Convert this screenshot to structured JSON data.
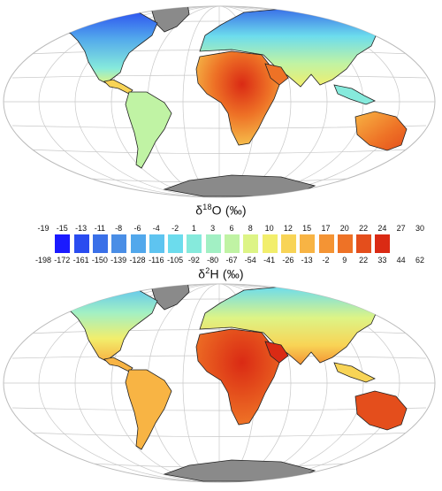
{
  "maps": [
    {
      "id": "d18O",
      "title_symbol": "δ",
      "title_superscript": "18",
      "title_rest": "O (‰)"
    },
    {
      "id": "d2H",
      "title_symbol": "δ",
      "title_superscript": "2",
      "title_rest": "H (‰)"
    }
  ],
  "legend": {
    "colors": [
      "#1a1aff",
      "#2a4cf0",
      "#3a70e8",
      "#4a8ee6",
      "#52a8ec",
      "#5ec4f0",
      "#6cdced",
      "#86eadc",
      "#a2f0c4",
      "#c0f3a4",
      "#ddf486",
      "#f2ee6c",
      "#f8d456",
      "#f8b444",
      "#f49434",
      "#ee7226",
      "#e44e1c",
      "#da2a14"
    ],
    "d18O_ticks": [
      "-19",
      "-15",
      "-13",
      "-11",
      "-8",
      "-6",
      "-4",
      "-2",
      "1",
      "3",
      "6",
      "8",
      "10",
      "12",
      "15",
      "17",
      "20",
      "22",
      "24",
      "27",
      "30"
    ],
    "d2H_ticks": [
      "-198",
      "-172",
      "-161",
      "-150",
      "-139",
      "-128",
      "-116",
      "-105",
      "-92",
      "-80",
      "-67",
      "-54",
      "-41",
      "-26",
      "-13",
      "-2",
      "9",
      "22",
      "33",
      "44",
      "62"
    ]
  }
}
